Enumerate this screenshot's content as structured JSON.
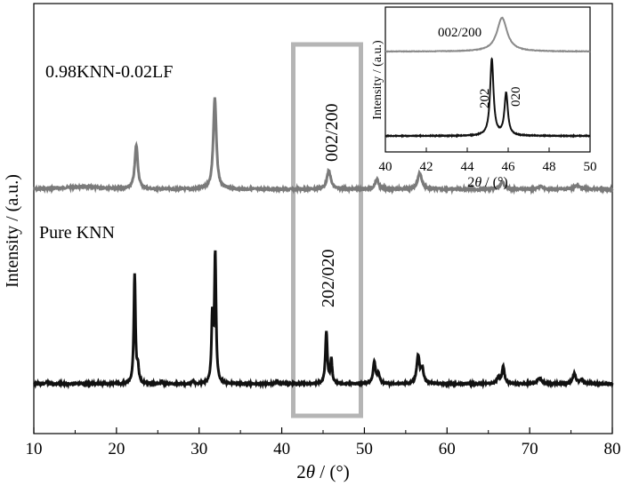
{
  "chart_data": [
    {
      "type": "line",
      "xlabel_main": "2",
      "xlabel_theta": "θ",
      "xlabel_unit": " / (°)",
      "ylabel": "Intensity / (a.u.)",
      "xlim": [
        10,
        80
      ],
      "xticks": [
        10,
        20,
        30,
        40,
        50,
        60,
        70,
        80
      ],
      "grid": false,
      "legend": "none",
      "series": [
        {
          "name": "0.98KNN-0.02LF",
          "color": "#7a7a7a",
          "baseline": 0.0,
          "peaks": [
            {
              "x": 22.4,
              "h": 0.62,
              "w": 0.22
            },
            {
              "x": 31.9,
              "h": 1.28,
              "w": 0.22
            },
            {
              "x": 45.7,
              "h": 0.26,
              "w": 0.28
            },
            {
              "x": 51.5,
              "h": 0.14,
              "w": 0.26
            },
            {
              "x": 56.7,
              "h": 0.23,
              "w": 0.3
            },
            {
              "x": 66.7,
              "h": 0.1,
              "w": 0.3
            },
            {
              "x": 71.3,
              "h": 0.04,
              "w": 0.3
            },
            {
              "x": 75.7,
              "h": 0.05,
              "w": 0.4
            }
          ]
        },
        {
          "name": "Pure KNN",
          "color": "#111111",
          "baseline": 0.0,
          "peaks": [
            {
              "x": 11.6,
              "h": 0.03,
              "w": 0.15
            },
            {
              "x": 22.2,
              "h": 1.54,
              "w": 0.12
            },
            {
              "x": 22.6,
              "h": 0.22,
              "w": 0.12
            },
            {
              "x": 25.5,
              "h": 0.03,
              "w": 0.12
            },
            {
              "x": 29.3,
              "h": 0.04,
              "w": 0.12
            },
            {
              "x": 31.6,
              "h": 0.9,
              "w": 0.12
            },
            {
              "x": 31.95,
              "h": 1.8,
              "w": 0.12
            },
            {
              "x": 39.4,
              "h": 0.04,
              "w": 0.15
            },
            {
              "x": 45.4,
              "h": 0.73,
              "w": 0.14
            },
            {
              "x": 46.0,
              "h": 0.34,
              "w": 0.12
            },
            {
              "x": 51.2,
              "h": 0.3,
              "w": 0.18
            },
            {
              "x": 51.7,
              "h": 0.13,
              "w": 0.18
            },
            {
              "x": 56.5,
              "h": 0.39,
              "w": 0.2
            },
            {
              "x": 57.0,
              "h": 0.2,
              "w": 0.2
            },
            {
              "x": 66.2,
              "h": 0.09,
              "w": 0.2
            },
            {
              "x": 66.8,
              "h": 0.24,
              "w": 0.18
            },
            {
              "x": 71.2,
              "h": 0.08,
              "w": 0.3
            },
            {
              "x": 75.4,
              "h": 0.15,
              "w": 0.22
            },
            {
              "x": 76.3,
              "h": 0.06,
              "w": 0.2
            }
          ]
        }
      ],
      "annotations": [
        {
          "text": "0.98KNN-0.02LF",
          "target": "upper-curve-label"
        },
        {
          "text": "Pure KNN",
          "target": "lower-curve-label"
        },
        {
          "text": "002/200",
          "target": "upper-peak-label"
        },
        {
          "text": "202/020",
          "target": "lower-peak-label"
        }
      ],
      "highlight_box": {
        "xlim": [
          41.2,
          49.5
        ],
        "color": "#b0b0b0"
      }
    },
    {
      "type": "line",
      "role": "inset",
      "xlabel_main": "2",
      "xlabel_theta": "θ",
      "xlabel_unit": " / (°)",
      "ylabel": "Intensity / (a.u.)",
      "xlim": [
        40,
        50
      ],
      "xticks": [
        40,
        42,
        44,
        46,
        48,
        50
      ],
      "series": [
        {
          "name": "0.98KNN-0.02LF",
          "color": "#8a8a8a",
          "peaks": [
            {
              "x": 45.7,
              "h": 1.0,
              "w": 0.3
            }
          ]
        },
        {
          "name": "Pure KNN",
          "color": "#111111",
          "peaks": [
            {
              "x": 45.2,
              "h": 1.0,
              "w": 0.1
            },
            {
              "x": 45.9,
              "h": 0.55,
              "w": 0.1
            }
          ]
        }
      ],
      "annotations": [
        {
          "text": "002/200"
        },
        {
          "text": "202"
        },
        {
          "text": "020"
        }
      ]
    }
  ],
  "labels": {
    "upper_sample": "0.98KNN-0.02LF",
    "lower_sample": "Pure KNN",
    "upper_peak": "002/200",
    "lower_peak": "202/020",
    "inset_upper_peak": "002/200",
    "inset_peak_a": "202",
    "inset_peak_b": "020",
    "ylabel": "Intensity / (a.u.)",
    "inset_ylabel": "Intensity / (a.u.)"
  }
}
